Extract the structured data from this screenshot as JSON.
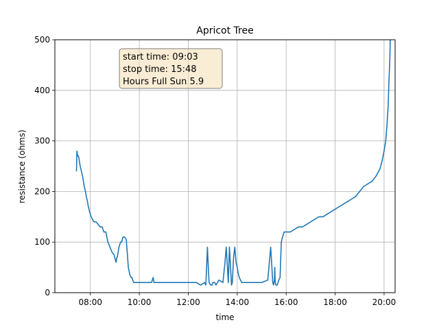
{
  "chart_data": {
    "type": "line",
    "title": "Apricot Tree",
    "xlabel": "time",
    "ylabel": "resistance (ohms)",
    "xlim": [
      "06:33",
      "20:27"
    ],
    "ylim": [
      0,
      500
    ],
    "x_ticks": [
      "08:00",
      "10:00",
      "12:00",
      "14:00",
      "16:00",
      "18:00",
      "20:00"
    ],
    "y_ticks": [
      0,
      100,
      200,
      300,
      400,
      500
    ],
    "grid": true,
    "annotation": {
      "lines": [
        "start time: 09:03",
        "stop time: 15:48",
        "Hours Full Sun 5.9"
      ],
      "placement": "top-left"
    },
    "colors": {
      "line": "#1f77b4",
      "grid": "#b0b0b0",
      "annotation_fill": "#f5deb3",
      "annotation_border": "#7f7f7f"
    },
    "series": [
      {
        "x": [
          "07:26",
          "07:27",
          "07:29",
          "07:31",
          "07:33",
          "07:35",
          "07:38",
          "07:41",
          "07:43",
          "07:45",
          "07:48",
          "07:50",
          "07:53",
          "07:55",
          "07:58",
          "08:02",
          "08:05",
          "08:09",
          "08:14",
          "08:19",
          "08:24",
          "08:29",
          "08:33",
          "08:38",
          "08:43",
          "08:48",
          "08:53",
          "08:58",
          "09:03",
          "09:05",
          "09:06",
          "09:08",
          "09:10",
          "09:12",
          "09:14",
          "09:17",
          "09:20",
          "09:24",
          "09:28",
          "09:33",
          "09:37",
          "09:40",
          "09:42",
          "09:44",
          "09:46",
          "09:48",
          "09:52",
          "09:56",
          "10:00",
          "10:10",
          "10:30",
          "10:34",
          "10:36",
          "10:40",
          "11:00",
          "11:30",
          "12:00",
          "12:05",
          "12:10",
          "12:20",
          "12:30",
          "12:40",
          "12:43",
          "12:45",
          "12:47",
          "12:48",
          "12:51",
          "12:55",
          "12:58",
          "13:00",
          "13:05",
          "13:08",
          "13:15",
          "13:25",
          "13:30",
          "13:33",
          "13:36",
          "13:38",
          "13:41",
          "13:43",
          "13:46",
          "13:48",
          "13:51",
          "13:54",
          "13:57",
          "14:00",
          "14:02",
          "14:05",
          "14:08",
          "14:11",
          "14:15",
          "14:20",
          "14:30",
          "14:45",
          "15:00",
          "15:15",
          "15:22",
          "15:25",
          "15:27",
          "15:29",
          "15:31",
          "15:32",
          "15:33",
          "15:35",
          "15:38",
          "15:40",
          "15:42",
          "15:45",
          "15:48",
          "15:51",
          "15:55",
          "16:00",
          "16:10",
          "16:20",
          "16:30",
          "16:40",
          "16:50",
          "17:00",
          "17:10",
          "17:20",
          "17:30",
          "17:40",
          "17:50",
          "18:00",
          "18:10",
          "18:20",
          "18:30",
          "18:40",
          "18:50",
          "19:00",
          "19:10",
          "19:20",
          "19:30",
          "19:40",
          "19:50",
          "19:55",
          "20:00",
          "20:04",
          "20:07",
          "20:10",
          "20:12",
          "20:14",
          "20:15"
        ],
        "values": [
          240,
          280,
          270,
          270,
          260,
          250,
          240,
          230,
          220,
          210,
          200,
          190,
          180,
          170,
          160,
          150,
          145,
          140,
          140,
          135,
          130,
          130,
          120,
          120,
          100,
          90,
          80,
          75,
          60,
          70,
          70,
          80,
          90,
          95,
          100,
          100,
          110,
          110,
          105,
          50,
          35,
          30,
          30,
          25,
          20,
          20,
          20,
          20,
          20,
          20,
          20,
          30,
          20,
          20,
          20,
          20,
          20,
          20,
          20,
          20,
          15,
          20,
          15,
          50,
          90,
          70,
          20,
          15,
          15,
          20,
          20,
          15,
          25,
          20,
          60,
          90,
          50,
          20,
          90,
          60,
          15,
          20,
          70,
          90,
          60,
          50,
          40,
          30,
          25,
          20,
          20,
          20,
          20,
          20,
          20,
          25,
          90,
          50,
          20,
          15,
          25,
          50,
          20,
          15,
          15,
          20,
          25,
          30,
          100,
          110,
          120,
          120,
          120,
          125,
          130,
          130,
          135,
          140,
          145,
          150,
          150,
          155,
          160,
          165,
          170,
          175,
          180,
          185,
          190,
          200,
          210,
          215,
          220,
          230,
          245,
          260,
          280,
          300,
          330,
          370,
          420,
          460,
          500
        ]
      }
    ]
  }
}
